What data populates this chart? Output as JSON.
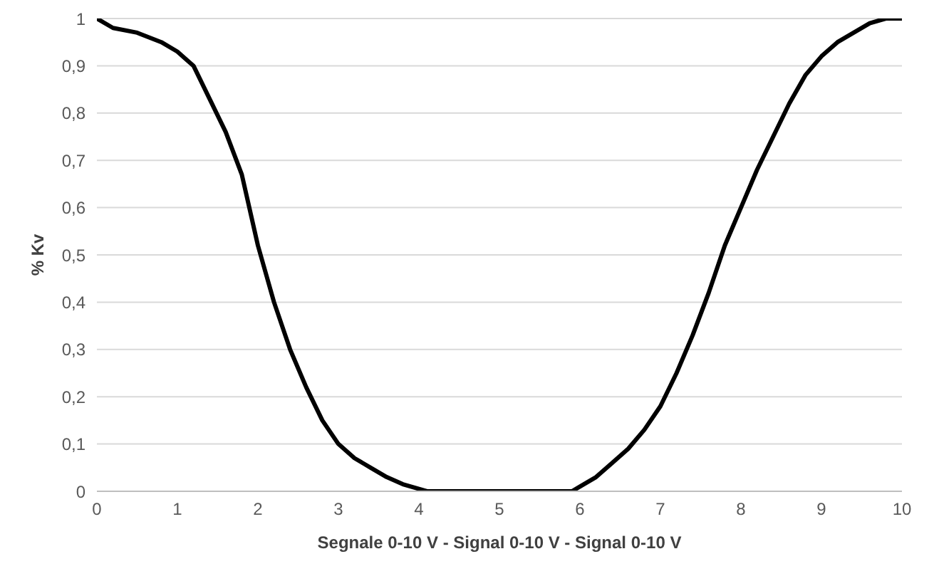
{
  "chart_data": {
    "type": "line",
    "xlabel": "Segnale 0-10 V - Signal 0-10 V - Signal 0-10 V",
    "ylabel": "% Kv",
    "x": [
      0,
      0.2,
      0.5,
      0.8,
      1.0,
      1.2,
      1.4,
      1.6,
      1.8,
      2.0,
      2.2,
      2.4,
      2.6,
      2.8,
      3.0,
      3.2,
      3.4,
      3.6,
      3.8,
      4.0,
      4.1,
      5.9,
      6.0,
      6.2,
      6.4,
      6.6,
      6.8,
      7.0,
      7.2,
      7.4,
      7.6,
      7.8,
      8.0,
      8.2,
      8.4,
      8.6,
      8.8,
      9.0,
      9.2,
      9.4,
      9.6,
      9.8,
      10
    ],
    "series": [
      {
        "color": "#000000",
        "values": [
          1.0,
          0.98,
          0.97,
          0.95,
          0.93,
          0.9,
          0.83,
          0.76,
          0.67,
          0.52,
          0.4,
          0.3,
          0.22,
          0.15,
          0.1,
          0.07,
          0.05,
          0.03,
          0.015,
          0.005,
          0,
          0,
          0.01,
          0.03,
          0.06,
          0.09,
          0.13,
          0.18,
          0.25,
          0.33,
          0.42,
          0.52,
          0.6,
          0.68,
          0.75,
          0.82,
          0.88,
          0.92,
          0.95,
          0.97,
          0.99,
          1.0,
          1.0
        ]
      }
    ],
    "xlim": [
      0,
      10
    ],
    "xticks": [
      0,
      1,
      2,
      3,
      4,
      5,
      6,
      7,
      8,
      9,
      10
    ],
    "ylim": [
      0,
      1
    ],
    "yticks": [
      0,
      {
        "value": 0.1,
        "label": "0,1"
      },
      {
        "value": 0.2,
        "label": "0,2"
      },
      {
        "value": 0.3,
        "label": "0,3"
      },
      {
        "value": 0.4,
        "label": "0,4"
      },
      {
        "value": 0.5,
        "label": "0,5"
      },
      {
        "value": 0.6,
        "label": "0,6"
      },
      {
        "value": 0.7,
        "label": "0,7"
      },
      {
        "value": 0.8,
        "label": "0,8"
      },
      {
        "value": 0.9,
        "label": "0,9"
      },
      1
    ],
    "grid": "y",
    "legend": false,
    "marker": "none",
    "line_style": "solid"
  }
}
